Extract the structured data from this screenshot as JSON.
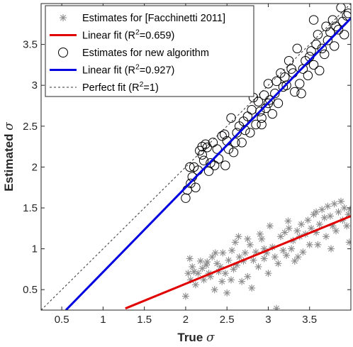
{
  "chart_data": {
    "type": "scatter",
    "xlabel": "True σ",
    "ylabel": "Estimated σ",
    "xlim": [
      0.25,
      4.0
    ],
    "ylim": [
      0.25,
      4.0
    ],
    "xticks": [
      "0.5",
      "1",
      "1.5",
      "2",
      "2.5",
      "3",
      "3.5"
    ],
    "yticks": [
      "0.5",
      "1",
      "1.5",
      "2",
      "2.5",
      "3",
      "3.5"
    ],
    "grid": false,
    "legend_position": "top-left",
    "series": [
      {
        "name": "Estimates for [Facchinetti 2011]",
        "marker": "asterisk",
        "color": "#8c8c8c",
        "points": [
          [
            2.0,
            0.42
          ],
          [
            2.03,
            0.7
          ],
          [
            2.06,
            0.62
          ],
          [
            2.08,
            0.78
          ],
          [
            2.1,
            0.72
          ],
          [
            2.12,
            0.56
          ],
          [
            2.15,
            0.7
          ],
          [
            2.18,
            0.85
          ],
          [
            2.2,
            0.76
          ],
          [
            2.22,
            0.62
          ],
          [
            2.25,
            0.8
          ],
          [
            2.28,
            0.7
          ],
          [
            2.3,
            0.66
          ],
          [
            2.32,
            0.9
          ],
          [
            2.35,
            0.5
          ],
          [
            2.38,
            0.82
          ],
          [
            2.4,
            0.72
          ],
          [
            2.42,
            0.78
          ],
          [
            2.45,
            0.95
          ],
          [
            2.48,
            0.7
          ],
          [
            2.5,
            0.46
          ],
          [
            2.52,
            0.86
          ],
          [
            2.55,
            0.62
          ],
          [
            2.58,
            0.75
          ],
          [
            2.6,
            1.08
          ],
          [
            2.62,
            0.8
          ],
          [
            2.65,
            0.9
          ],
          [
            2.68,
            0.6
          ],
          [
            2.7,
            0.85
          ],
          [
            2.72,
            0.95
          ],
          [
            2.75,
            0.66
          ],
          [
            2.78,
            1.05
          ],
          [
            2.8,
            0.52
          ],
          [
            2.82,
            0.86
          ],
          [
            2.85,
            0.96
          ],
          [
            2.88,
            0.78
          ],
          [
            2.9,
            1.18
          ],
          [
            2.92,
            1.12
          ],
          [
            2.95,
            0.88
          ],
          [
            2.98,
            0.95
          ],
          [
            3.0,
            0.7
          ],
          [
            3.02,
            1.28
          ],
          [
            3.05,
            1.02
          ],
          [
            3.08,
            0.9
          ],
          [
            3.1,
            0.27
          ],
          [
            3.12,
            0.82
          ],
          [
            3.15,
            1.15
          ],
          [
            3.18,
            0.98
          ],
          [
            3.2,
            1.2
          ],
          [
            3.22,
            0.92
          ],
          [
            3.25,
            1.25
          ],
          [
            3.28,
            1.0
          ],
          [
            3.3,
            1.1
          ],
          [
            3.32,
            0.85
          ],
          [
            3.35,
            1.22
          ],
          [
            3.38,
            1.15
          ],
          [
            3.4,
            1.3
          ],
          [
            3.42,
            0.96
          ],
          [
            3.45,
            1.18
          ],
          [
            3.48,
            1.35
          ],
          [
            3.5,
            1.05
          ],
          [
            3.52,
            1.25
          ],
          [
            3.55,
            1.42
          ],
          [
            3.58,
            1.2
          ],
          [
            3.6,
            1.05
          ],
          [
            3.62,
            1.3
          ],
          [
            3.65,
            1.48
          ],
          [
            3.68,
            1.38
          ],
          [
            3.7,
            1.15
          ],
          [
            3.72,
            1.52
          ],
          [
            3.75,
            1.4
          ],
          [
            3.78,
            1.28
          ],
          [
            3.8,
            1.55
          ],
          [
            3.82,
            1.22
          ],
          [
            3.85,
            1.45
          ],
          [
            3.88,
            1.58
          ],
          [
            3.9,
            1.35
          ],
          [
            3.92,
            1.5
          ],
          [
            3.95,
            1.28
          ],
          [
            3.97,
            1.42
          ],
          [
            3.98,
            1.08
          ],
          [
            3.99,
            1.48
          ],
          [
            2.05,
            0.88
          ],
          [
            2.26,
            0.84
          ],
          [
            2.44,
            0.6
          ],
          [
            2.64,
            1.15
          ],
          [
            2.95,
            1.0
          ],
          [
            3.36,
            0.9
          ],
          [
            3.58,
            1.45
          ],
          [
            3.76,
            1.0
          ],
          [
            2.36,
            0.95
          ],
          [
            2.56,
            0.98
          ],
          [
            2.75,
            1.12
          ],
          [
            3.24,
            1.34
          ]
        ]
      },
      {
        "name": "Linear fit (R²=0.659)",
        "color": "#e00000",
        "line": [
          [
            1.27,
            0.27
          ],
          [
            4.0,
            1.4
          ]
        ]
      },
      {
        "name": "Estimates for new algorithm",
        "marker": "circle",
        "color": "#000000",
        "points": [
          [
            2.0,
            1.62
          ],
          [
            2.02,
            1.72
          ],
          [
            2.05,
            2.0
          ],
          [
            2.06,
            1.8
          ],
          [
            2.08,
            1.88
          ],
          [
            2.1,
            2.0
          ],
          [
            2.12,
            1.75
          ],
          [
            2.15,
            1.96
          ],
          [
            2.17,
            2.2
          ],
          [
            2.2,
            2.15
          ],
          [
            2.22,
            2.08
          ],
          [
            2.24,
            2.28
          ],
          [
            2.26,
            2.24
          ],
          [
            2.28,
            1.95
          ],
          [
            2.3,
            2.05
          ],
          [
            2.33,
            2.3
          ],
          [
            2.35,
            2.02
          ],
          [
            2.38,
            2.22
          ],
          [
            2.4,
            2.1
          ],
          [
            2.44,
            2.38
          ],
          [
            2.47,
            2.4
          ],
          [
            2.5,
            2.32
          ],
          [
            2.52,
            2.22
          ],
          [
            2.55,
            2.6
          ],
          [
            2.58,
            2.18
          ],
          [
            2.6,
            2.3
          ],
          [
            2.62,
            2.42
          ],
          [
            2.65,
            2.5
          ],
          [
            2.68,
            2.3
          ],
          [
            2.7,
            2.56
          ],
          [
            2.72,
            2.45
          ],
          [
            2.75,
            2.62
          ],
          [
            2.78,
            2.42
          ],
          [
            2.8,
            2.7
          ],
          [
            2.82,
            2.85
          ],
          [
            2.85,
            2.52
          ],
          [
            2.88,
            2.8
          ],
          [
            2.9,
            2.68
          ],
          [
            2.92,
            2.6
          ],
          [
            2.95,
            2.88
          ],
          [
            2.97,
            2.72
          ],
          [
            3.0,
            2.78
          ],
          [
            3.02,
            2.82
          ],
          [
            3.05,
            2.65
          ],
          [
            3.08,
            2.9
          ],
          [
            3.1,
            3.05
          ],
          [
            3.12,
            2.78
          ],
          [
            3.15,
            3.15
          ],
          [
            3.18,
            2.98
          ],
          [
            3.2,
            3.1
          ],
          [
            3.22,
            3.0
          ],
          [
            3.25,
            3.3
          ],
          [
            3.28,
            3.2
          ],
          [
            3.3,
            3.15
          ],
          [
            3.32,
            2.92
          ],
          [
            3.35,
            3.45
          ],
          [
            3.38,
            3.02
          ],
          [
            3.4,
            2.9
          ],
          [
            3.42,
            3.2
          ],
          [
            3.45,
            3.3
          ],
          [
            3.48,
            3.12
          ],
          [
            3.5,
            3.35
          ],
          [
            3.52,
            3.42
          ],
          [
            3.55,
            3.25
          ],
          [
            3.58,
            3.5
          ],
          [
            3.6,
            3.62
          ],
          [
            3.62,
            3.18
          ],
          [
            3.65,
            3.45
          ],
          [
            3.68,
            3.38
          ],
          [
            3.7,
            3.72
          ],
          [
            3.72,
            3.55
          ],
          [
            3.75,
            3.65
          ],
          [
            3.78,
            3.8
          ],
          [
            3.8,
            3.48
          ],
          [
            3.82,
            3.72
          ],
          [
            3.85,
            3.68
          ],
          [
            3.88,
            3.95
          ],
          [
            3.9,
            3.78
          ],
          [
            3.92,
            3.62
          ],
          [
            3.95,
            3.85
          ],
          [
            3.97,
            3.88
          ],
          [
            3.55,
            3.8
          ],
          [
            3.0,
            3.02
          ],
          [
            2.2,
            2.25
          ],
          [
            2.48,
            2.02
          ],
          [
            2.92,
            2.52
          ]
        ]
      },
      {
        "name": "Linear fit (R²=0.927)",
        "color": "#0000e0",
        "line": [
          [
            0.55,
            0.25
          ],
          [
            4.0,
            3.82
          ]
        ]
      },
      {
        "name": "Perfect fit (R²=1)",
        "color": "#333333",
        "dashed": true,
        "line": [
          [
            0.25,
            0.25
          ],
          [
            4.0,
            4.0
          ]
        ]
      }
    ],
    "legend": [
      {
        "prefix": "Estimates for [Facchinetti 2011]",
        "sup": "",
        "suffix": "",
        "icon": "asterisk"
      },
      {
        "prefix": "Linear fit (R",
        "sup": "2",
        "suffix": "=0.659)",
        "icon": "line-red"
      },
      {
        "prefix": "Estimates for new algorithm",
        "sup": "",
        "suffix": "",
        "icon": "circle"
      },
      {
        "prefix": "Linear fit (R",
        "sup": "2",
        "suffix": "=0.927)",
        "icon": "line-blue"
      },
      {
        "prefix": "Perfect fit (R",
        "sup": "2",
        "suffix": "=1)",
        "icon": "line-dashed"
      }
    ],
    "axis_label_parts": {
      "x": {
        "text": "True ",
        "symbol": "σ"
      },
      "y": {
        "text": "Estimated ",
        "symbol": "σ"
      }
    }
  }
}
